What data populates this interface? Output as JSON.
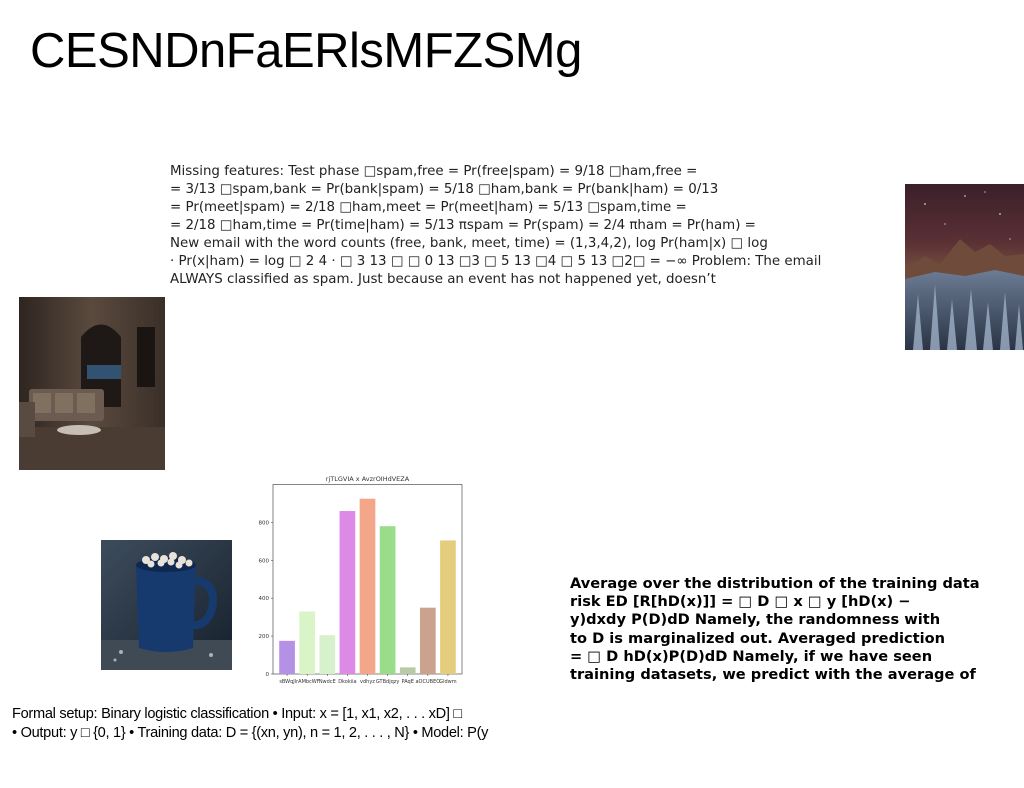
{
  "title": "CESNDnFaERlsMFZSMg",
  "block_missing_features": {
    "lines": [
      "Missing features: Test phase □spam,free = Pr(free|spam) = 9/18 □ham,free =",
      "= 3/13 □spam,bank = Pr(bank|spam) = 5/18 □ham,bank = Pr(bank|ham) = 0/13",
      "= Pr(meet|spam) = 2/18 □ham,meet = Pr(meet|ham) = 5/13 □spam,time =",
      "= 2/18 □ham,time = Pr(time|ham) = 5/13 πspam = Pr(spam) = 2/4 πham = Pr(ham) =",
      "New email with the word counts (free, bank, meet, time) = (1,3,4,2), log Pr(ham|x) □ log",
      "· Pr(x|ham) = log □ 2 4 · □ 3 13 □ □ 0 13 □3 □ 5 13 □4 □ 5 13 □2□ = −∞ Problem: The email",
      "ALWAYS classified as spam. Just because an event has not happened yet, doesn’t"
    ]
  },
  "block_average": {
    "lines": [
      "Average over the distribution of the training data",
      "risk ED [R[hD(x)]] = □ D □ x □ y [hD(x) −",
      "y)dxdy P(D)dD Namely, the randomness with",
      "to D is marginalized out. Averaged prediction",
      "= □ D hD(x)P(D)dD Namely, if we have seen",
      "training datasets, we predict with the average of"
    ]
  },
  "block_formal_setup": {
    "lines": [
      "Formal setup: Binary logistic classification • Input: x = [1, x1, x2, . . . xD] □",
      "• Output: y □ {0, 1} • Training data: D = {(xn, yn), n = 1, 2, . . . , N} • Model: P(y"
    ]
  },
  "chart_data": {
    "type": "bar",
    "title": "rjTLGVIA x AvzrOIHdVEZA",
    "xlabel": "",
    "ylabel": "",
    "categories": [
      "sBWqJ",
      "lrAMbcWF",
      "NwdcE",
      "Dkokiia",
      "vdhyz",
      "GTBdjqzy",
      "PAqE",
      "aOCUBEO",
      "Gldwm"
    ],
    "values": [
      175,
      330,
      205,
      860,
      925,
      780,
      35,
      350,
      705
    ],
    "colors": [
      "#b591e6",
      "#d9f5c8",
      "#d6f1cc",
      "#dd8ae6",
      "#f3a68a",
      "#99dd8b",
      "#b7cba9",
      "#caa28e",
      "#e5cd7e"
    ],
    "ylim": [
      0,
      1000
    ],
    "yticks": [
      0,
      200,
      400,
      600,
      800
    ],
    "grid": false
  }
}
